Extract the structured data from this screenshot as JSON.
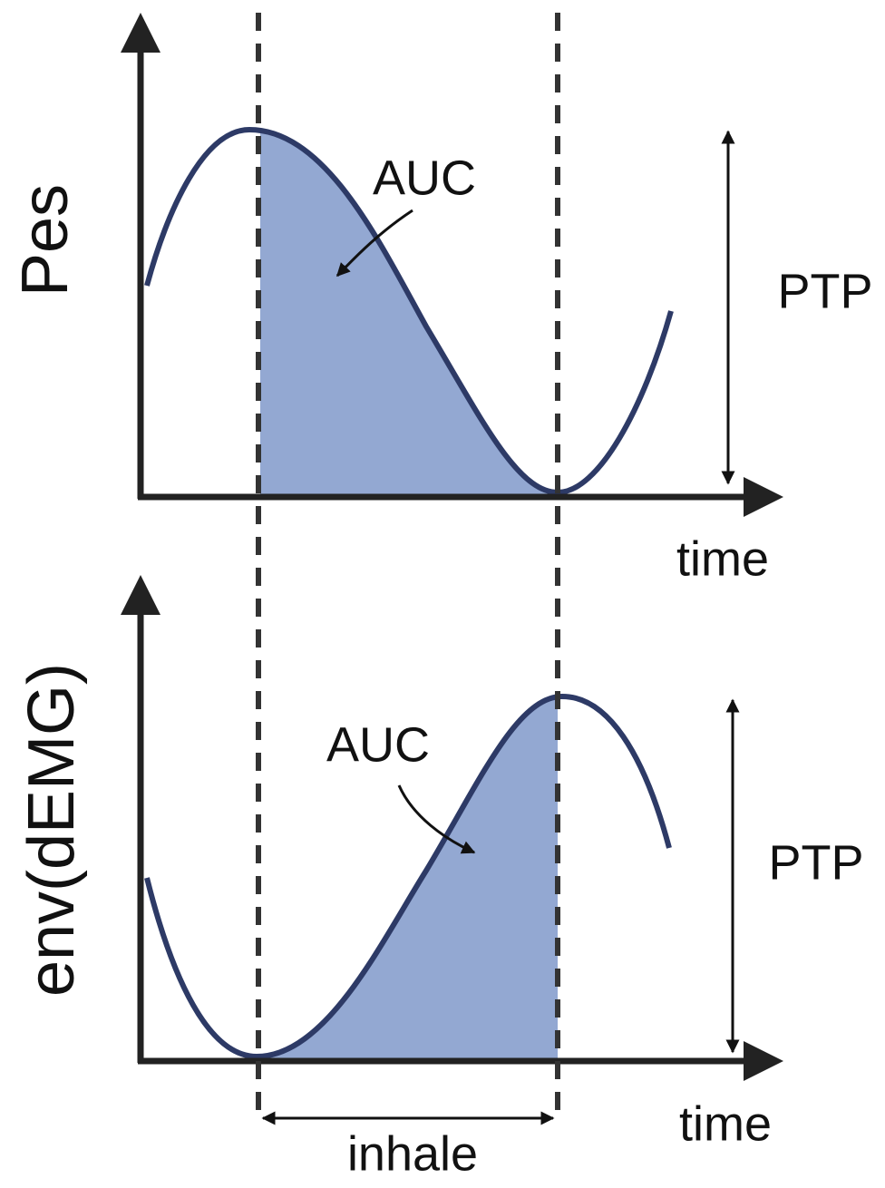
{
  "panels": [
    {
      "y_label": "Pes",
      "auc_label": "AUC",
      "amplitude_label": "PTP",
      "x_label": "time"
    },
    {
      "y_label": "env(dEMG)",
      "auc_label": "AUC",
      "amplitude_label": "PTP",
      "x_label": "time"
    }
  ],
  "interval_label": "inhale"
}
